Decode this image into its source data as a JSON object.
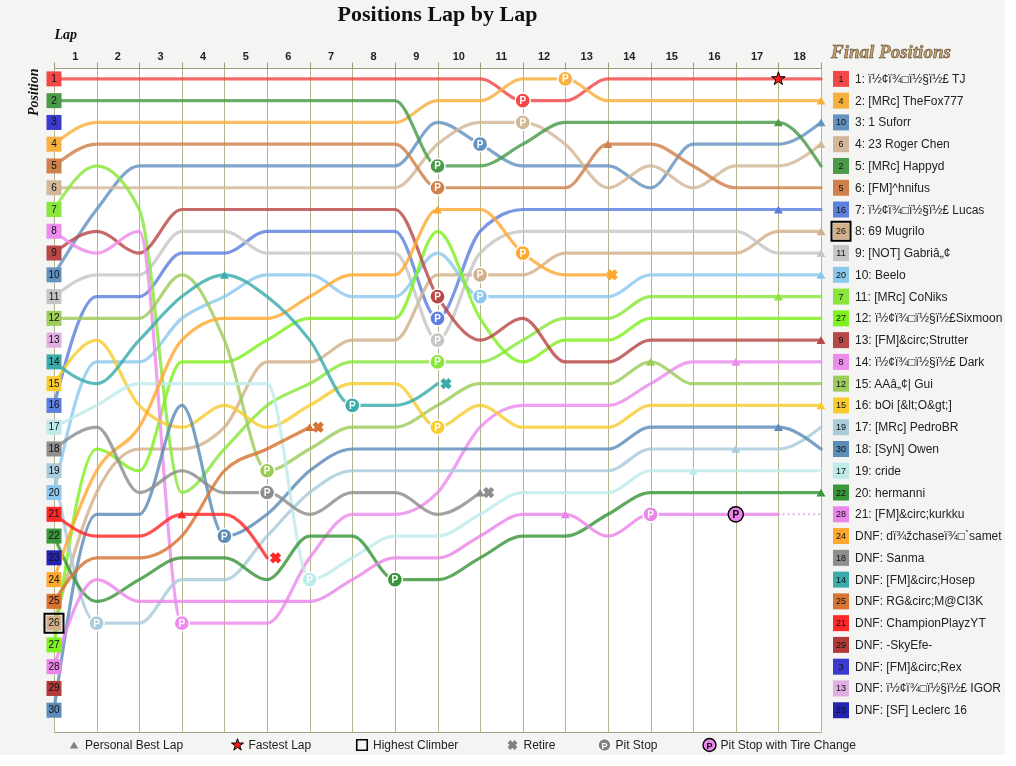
{
  "chart_data": {
    "type": "line",
    "title": "Positions Lap by Lap",
    "xlabel": "Lap",
    "ylabel": "Position",
    "legend_title": "Final Positions",
    "legend": "right",
    "grid": "x",
    "annotations": [
      "1",
      "4",
      "10",
      "6",
      "2",
      "5",
      "16",
      "26",
      "11",
      "20",
      "7",
      "27",
      "9",
      "8",
      "12",
      "15",
      "19",
      "30",
      "17",
      "22",
      "28",
      "24",
      "18",
      "14",
      "25",
      "21",
      "29",
      "3",
      "13",
      "23"
    ],
    "x": [
      0,
      1,
      2,
      3,
      4,
      5,
      6,
      7,
      8,
      9,
      10,
      11,
      12,
      13,
      14,
      15,
      16,
      17,
      18
    ],
    "xlim": [
      0,
      18
    ],
    "xticks": [
      {
        "value": 0,
        "label": null
      },
      {
        "value": 0.5,
        "label": "1"
      },
      {
        "value": 1,
        "label": null
      },
      {
        "value": 1.5,
        "label": "2"
      },
      {
        "value": 2,
        "label": null
      },
      {
        "value": 2.5,
        "label": "3"
      },
      {
        "value": 3,
        "label": null
      },
      {
        "value": 3.5,
        "label": "4"
      },
      {
        "value": 4,
        "label": null
      },
      {
        "value": 4.5,
        "label": "5"
      },
      {
        "value": 5,
        "label": null
      },
      {
        "value": 5.5,
        "label": "6"
      },
      {
        "value": 6,
        "label": null
      },
      {
        "value": 6.5,
        "label": "7"
      },
      {
        "value": 7,
        "label": null
      },
      {
        "value": 7.5,
        "label": "8"
      },
      {
        "value": 8,
        "label": null
      },
      {
        "value": 8.5,
        "label": "9"
      },
      {
        "value": 9,
        "label": null
      },
      {
        "value": 9.5,
        "label": "10"
      },
      {
        "value": 10,
        "label": null
      },
      {
        "value": 10.5,
        "label": "11"
      },
      {
        "value": 11,
        "label": null
      },
      {
        "value": 11.5,
        "label": "12"
      },
      {
        "value": 12,
        "label": null
      },
      {
        "value": 12.5,
        "label": "13"
      },
      {
        "value": 13,
        "label": null
      },
      {
        "value": 13.5,
        "label": "14"
      },
      {
        "value": 14,
        "label": null
      },
      {
        "value": 14.5,
        "label": "15"
      },
      {
        "value": 15,
        "label": null
      },
      {
        "value": 15.5,
        "label": "16"
      },
      {
        "value": 16,
        "label": null
      },
      {
        "value": 16.5,
        "label": "17"
      },
      {
        "value": 17,
        "label": null
      },
      {
        "value": 17.5,
        "label": "18"
      },
      {
        "value": 18,
        "label": null
      }
    ],
    "ylim": [
      31,
      0.5
    ],
    "yticks": [
      1,
      2,
      3,
      4,
      5,
      6,
      7,
      8,
      9,
      10,
      11,
      12,
      13,
      14,
      15,
      16,
      17,
      18,
      19,
      20,
      21,
      22,
      23,
      24,
      25,
      26,
      27,
      28,
      29,
      30
    ],
    "series": [
      {
        "name": "1: ï½¢ï¾□ï½§ï½£ TJ",
        "color": "#f24848",
        "values": [
          1,
          1,
          1,
          1,
          1,
          1,
          1,
          1,
          1,
          1,
          1,
          2,
          2,
          1,
          1,
          1,
          1,
          1,
          1
        ]
      },
      {
        "name": "2: [MRc] TheFox777",
        "color": "#f8b040",
        "values": [
          4,
          3,
          3,
          3,
          3,
          3,
          3,
          3,
          3,
          2,
          2,
          1,
          1,
          2,
          2,
          2,
          2,
          2,
          2
        ]
      },
      {
        "name": "3: 1 Suforr",
        "color": "#6492bf",
        "values": [
          10,
          7,
          5,
          5,
          5,
          5,
          5,
          5,
          5,
          3,
          4,
          5,
          5,
          5,
          6,
          4,
          4,
          4,
          3
        ]
      },
      {
        "name": "4: 23 Roger Chen",
        "color": "#d2b898",
        "values": [
          6,
          6,
          6,
          6,
          6,
          6,
          6,
          6,
          6,
          4,
          3,
          3,
          4,
          6,
          5,
          6,
          5,
          5,
          4
        ]
      },
      {
        "name": "5: [MRc] Happyd",
        "color": "#4a9a4a",
        "values": [
          2,
          2,
          2,
          2,
          2,
          2,
          2,
          2,
          2,
          5,
          5,
          4,
          3,
          3,
          3,
          3,
          3,
          3,
          5
        ]
      },
      {
        "name": "6: [FM]^hnifus",
        "color": "#d0804a",
        "values": [
          5,
          4,
          4,
          4,
          4,
          4,
          4,
          4,
          4,
          6,
          6,
          6,
          6,
          4,
          4,
          5,
          6,
          6,
          6
        ]
      },
      {
        "name": "7: ï½¢ï¾□ï½§ï½£ Lucas",
        "color": "#5c80de",
        "values": [
          16,
          11,
          11,
          9,
          9,
          8,
          8,
          8,
          8,
          12,
          8,
          7,
          7,
          7,
          7,
          7,
          7,
          7,
          7
        ]
      },
      {
        "name": "8: 69 Mugrilo",
        "color": "#d2b08a",
        "values": [
          26,
          20,
          18,
          18,
          17,
          14,
          14,
          13,
          13,
          10,
          10,
          10,
          9,
          9,
          9,
          9,
          9,
          8,
          8
        ]
      },
      {
        "name": "9: [NOT] Gabriâ„¢",
        "color": "#c6c6c6",
        "values": [
          11,
          10,
          10,
          8,
          8,
          9,
          9,
          9,
          9,
          13,
          9,
          8,
          8,
          8,
          8,
          8,
          8,
          9,
          9
        ]
      },
      {
        "name": "10: Beelo",
        "color": "#8cc8ee",
        "values": [
          20,
          14,
          14,
          12,
          11,
          10,
          10,
          11,
          11,
          9,
          11,
          11,
          11,
          11,
          10,
          10,
          10,
          10,
          10
        ]
      },
      {
        "name": "11: [MRc] CoNiks",
        "color": "#8ae63c",
        "values": [
          7,
          5,
          7,
          20,
          18,
          16,
          15,
          14,
          14,
          14,
          14,
          13,
          12,
          12,
          11,
          11,
          11,
          11,
          11
        ]
      },
      {
        "name": "12: ï½¢ï¾□ï½§ï½£Sixmoon",
        "color": "#80f020",
        "values": [
          27,
          18,
          19,
          14,
          14,
          13,
          12,
          12,
          12,
          8,
          12,
          14,
          13,
          13,
          12,
          12,
          12,
          12,
          12
        ]
      },
      {
        "name": "13: [FM]&circ;Strutter",
        "color": "#b84848",
        "values": [
          9,
          8,
          9,
          7,
          7,
          7,
          7,
          7,
          7,
          11,
          13,
          12,
          14,
          14,
          13,
          13,
          13,
          13,
          13
        ]
      },
      {
        "name": "14: ï½¢ï¾□ï½§ï½£ Dark",
        "color": "#ec8cec",
        "values": [
          8,
          9,
          8,
          26,
          26,
          26,
          23,
          21,
          21,
          20,
          17,
          16,
          16,
          16,
          15,
          14,
          14,
          14,
          14
        ]
      },
      {
        "name": "15: AAâ„¢| Gui",
        "color": "#9ccc5a",
        "values": [
          12,
          12,
          12,
          10,
          13,
          19,
          18,
          17,
          17,
          16,
          15,
          15,
          15,
          15,
          14,
          15,
          15,
          15,
          15
        ]
      },
      {
        "name": "16: bOi [&lt;O&gt;]",
        "color": "#f8cc30",
        "values": [
          15,
          13,
          16,
          17,
          16,
          17,
          16,
          15,
          15,
          17,
          16,
          17,
          17,
          17,
          16,
          16,
          16,
          16,
          16
        ]
      },
      {
        "name": "17: [MRc] PedroBR",
        "color": "#aacbdb",
        "values": [
          19,
          26,
          26,
          24,
          24,
          22,
          20,
          19,
          19,
          19,
          19,
          19,
          19,
          19,
          18,
          18,
          18,
          18,
          17
        ]
      },
      {
        "name": "18: [SyN] Owen",
        "color": "#5c8cb8",
        "values": [
          30,
          21,
          21,
          16,
          22,
          21,
          19,
          18,
          18,
          18,
          18,
          18,
          18,
          18,
          17,
          17,
          17,
          17,
          18
        ]
      },
      {
        "name": "19: cride",
        "color": "#bfeaea",
        "values": [
          17,
          16,
          15,
          15,
          15,
          15,
          24,
          23,
          22,
          22,
          21,
          20,
          20,
          20,
          19,
          19,
          19,
          19,
          19
        ]
      },
      {
        "name": "20: hermanni",
        "color": "#3a963a",
        "values": [
          22,
          25,
          24,
          23,
          23,
          24,
          22,
          22,
          24,
          24,
          23,
          22,
          22,
          21,
          20,
          20,
          20,
          20,
          20
        ]
      },
      {
        "name": "21: [FM]&circ;kurkku",
        "color": "#ea86ea",
        "values": [
          28,
          24,
          25,
          25,
          25,
          25,
          25,
          24,
          23,
          23,
          22,
          21,
          21,
          22,
          21,
          21,
          21,
          21,
          null
        ]
      },
      {
        "name": "DNF: dï¾žchaseï¾□`samet",
        "color": "#ffa830",
        "values": [
          24,
          19,
          17,
          13,
          12,
          12,
          11,
          10,
          10,
          7,
          7,
          9,
          10,
          10,
          null,
          null,
          null,
          null,
          null
        ]
      },
      {
        "name": "DNF: Sanma",
        "color": "#8e8e8e",
        "values": [
          18,
          17,
          20,
          19,
          20,
          20,
          21,
          20,
          20,
          21,
          20,
          null,
          null,
          null,
          null,
          null,
          null,
          null,
          null
        ]
      },
      {
        "name": "DNF: [FM]&circ;Hosep",
        "color": "#3aacac",
        "values": [
          14,
          15,
          13,
          11,
          10,
          11,
          13,
          16,
          16,
          15,
          null,
          null,
          null,
          null,
          null,
          null,
          null,
          null,
          null
        ]
      },
      {
        "name": "DNF: RG&circ;M@CI3K",
        "color": "#d87432",
        "values": [
          25,
          23,
          23,
          22,
          19,
          18,
          17,
          null,
          null,
          null,
          null,
          null,
          null,
          null,
          null,
          null,
          null,
          null,
          null
        ]
      },
      {
        "name": "DNF: ChampionPlayzYT",
        "color": "#ff2828",
        "values": [
          21,
          22,
          22,
          21,
          21,
          23,
          null,
          null,
          null,
          null,
          null,
          null,
          null,
          null,
          null,
          null,
          null,
          null,
          null
        ]
      },
      {
        "name": "DNF: -SkyEfe-",
        "color": "#b43a3a",
        "marker": "square",
        "values": [
          29,
          null,
          null,
          null,
          null,
          null,
          null,
          null,
          null,
          null,
          null,
          null,
          null,
          null,
          null,
          null,
          null,
          null,
          null
        ]
      },
      {
        "name": "DNF: [FM]&circ;Rex",
        "color": "#3a3acc",
        "marker": "square",
        "values": [
          3,
          null,
          null,
          null,
          null,
          null,
          null,
          null,
          null,
          null,
          null,
          null,
          null,
          null,
          null,
          null,
          null,
          null,
          null
        ]
      },
      {
        "name": "DNF: ï½¢ï¾□ï½§ï½£ IGOR",
        "color": "#e0aee0",
        "marker": "square",
        "values": [
          13,
          null,
          null,
          null,
          null,
          null,
          null,
          null,
          null,
          null,
          null,
          null,
          null,
          null,
          null,
          null,
          null,
          null,
          null
        ]
      },
      {
        "name": "DNF: [SF] Leclerc 16",
        "color": "#2424b0",
        "marker": "square",
        "values": [
          23,
          null,
          null,
          null,
          null,
          null,
          null,
          null,
          null,
          null,
          null,
          null,
          null,
          null,
          null,
          null,
          null,
          null,
          null
        ]
      },
      {
        "color": "#ea86ea",
        "x": [
          17,
          18
        ],
        "values": [
          21,
          21
        ],
        "line_style": "dotted"
      },
      {
        "name": "Personal Best Lap",
        "type": "scatter",
        "marker": "triangle",
        "color": "#808080",
        "x": [
          3,
          4,
          6,
          9,
          10,
          12,
          13,
          14,
          15,
          16,
          16,
          17,
          17,
          17,
          17,
          18,
          18,
          18,
          18,
          18,
          18,
          18,
          18,
          18
        ],
        "values": [
          21,
          10,
          17,
          7,
          20,
          21,
          4,
          14,
          19,
          14,
          18,
          3,
          7,
          11,
          17,
          2,
          3,
          4,
          8,
          9,
          10,
          13,
          16,
          20
        ],
        "colors": [
          "#ff2828",
          "#3aacac",
          "#d87432",
          "#ffa830",
          "#8e8e8e",
          "#ea86ea",
          "#d0804a",
          "#9ccc5a",
          "#bfeaea",
          "#ec8cec",
          "#aacbdb",
          "#4a9a4a",
          "#5c80de",
          "#8ae63c",
          "#5c8cb8",
          "#f8b040",
          "#6492bf",
          "#d2b898",
          "#d2b08a",
          "#c6c6c6",
          "#8cc8ee",
          "#b84848",
          "#f8cc30",
          "#3a963a"
        ]
      },
      {
        "name": "Fastest Lap",
        "type": "scatter",
        "marker": "star",
        "color": "#ff1a1a",
        "x": [
          17
        ],
        "values": [
          1
        ]
      },
      {
        "name": "Highest Climber",
        "type": "scatter",
        "marker": "square",
        "color": "#000000",
        "x": [
          0
        ],
        "values": [
          26
        ]
      },
      {
        "name": "Retire",
        "type": "scatter",
        "marker": "cross",
        "color": "#808080",
        "x": [
          5.2,
          6.2,
          9.2,
          10.2,
          13.1
        ],
        "values": [
          23,
          17,
          15,
          20,
          10
        ],
        "colors": [
          "#ff2828",
          "#d87432",
          "#3aacac",
          "#8e8e8e",
          "#ffa830"
        ]
      },
      {
        "name": "Pit Stop",
        "type": "scatter",
        "marker": "circle",
        "color": "#808080",
        "x": [
          1,
          3,
          4,
          5,
          5,
          6,
          7,
          8,
          9,
          9,
          9,
          9,
          9,
          9,
          9,
          10,
          10,
          10,
          11,
          11,
          11,
          12,
          14
        ],
        "values": [
          26,
          26,
          22,
          19,
          20,
          24,
          16,
          24,
          5,
          6,
          11,
          12,
          13,
          14,
          17,
          4,
          10,
          11,
          2,
          3,
          9,
          1,
          21
        ],
        "colors": [
          "#aacbdb",
          "#ec8cec",
          "#5c8cb8",
          "#9ccc5a",
          "#8e8e8e",
          "#bfeaea",
          "#3aacac",
          "#3a963a",
          "#4a9a4a",
          "#d0804a",
          "#b84848",
          "#5c80de",
          "#c6c6c6",
          "#8ae63c",
          "#f8cc30",
          "#6492bf",
          "#d2b08a",
          "#8cc8ee",
          "#f24848",
          "#d2b898",
          "#ffa830",
          "#f8b040",
          "#ea86ea"
        ],
        "value_labels": [
          "P",
          "P",
          "P",
          "P",
          "P",
          "P",
          "P",
          "P",
          "P",
          "P",
          "P",
          "P",
          "P",
          "P",
          "P",
          "P",
          "P",
          "P",
          "P",
          "P",
          "P",
          "P",
          "P"
        ]
      },
      {
        "name": "Pit Stop with Tire Change",
        "type": "scatter",
        "marker": "circle",
        "color": "#ea86ea",
        "x": [
          16
        ],
        "values": [
          21
        ],
        "value_labels": [
          "P"
        ]
      }
    ]
  }
}
